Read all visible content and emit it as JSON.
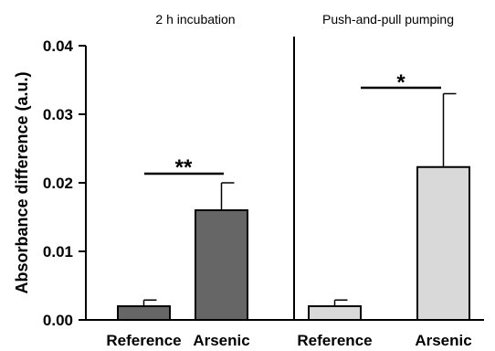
{
  "chart_data": {
    "type": "bar",
    "ylabel": "Absorbance difference (a.u.)",
    "ylim": [
      0,
      0.04
    ],
    "yticks": [
      "0.00",
      "0.01",
      "0.02",
      "0.03",
      "0.04"
    ],
    "ytick_values": [
      0,
      0.01,
      0.02,
      0.03,
      0.04
    ],
    "grid": false,
    "panels": [
      {
        "title": "2 h incubation",
        "categories": [
          "Reference",
          "Arsenic"
        ],
        "values": [
          0.002,
          0.016
        ],
        "errors": [
          0.0009,
          0.004
        ],
        "colors": [
          "#666666",
          "#666666"
        ],
        "significance": "**"
      },
      {
        "title": "Push-and-pull pumping",
        "categories": [
          "Reference",
          "Arsenic"
        ],
        "values": [
          0.002,
          0.0223
        ],
        "errors": [
          0.0009,
          0.0107
        ],
        "colors": [
          "#d9d9d9",
          "#d9d9d9"
        ],
        "significance": "*"
      }
    ]
  }
}
